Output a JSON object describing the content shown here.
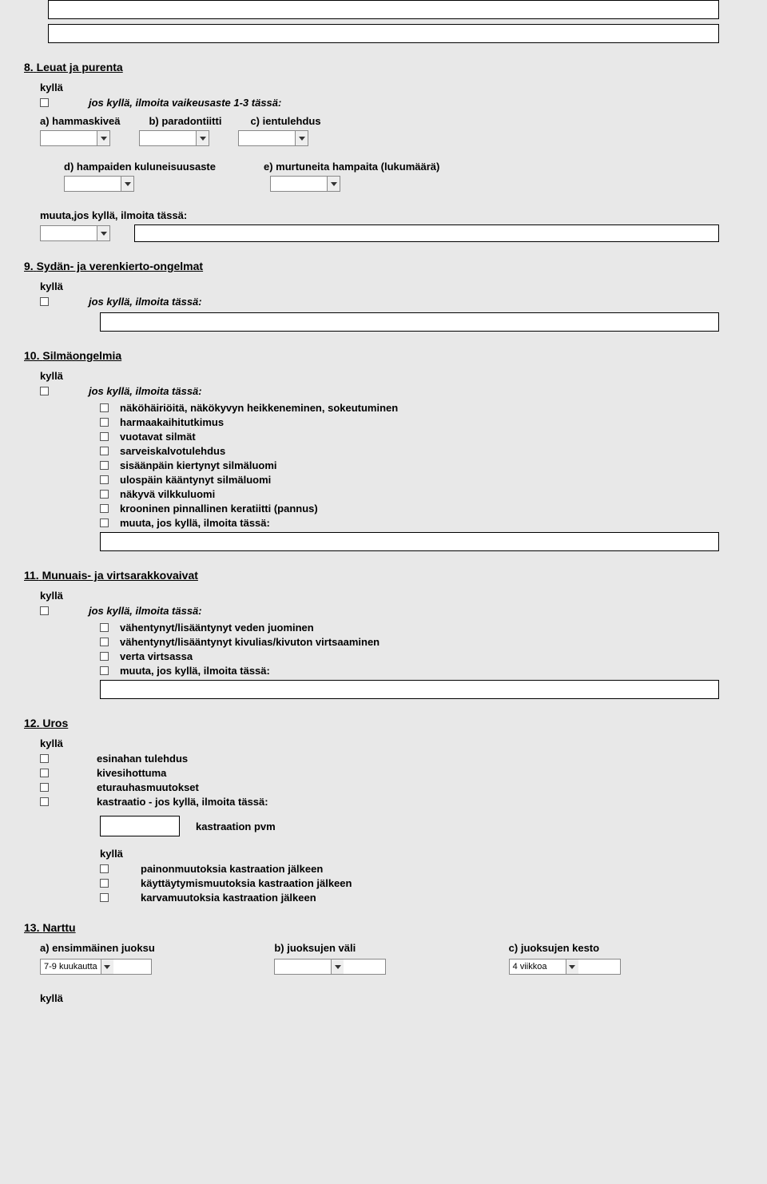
{
  "s8": {
    "num": "8.",
    "title": "Leuat ja purenta",
    "kylla": "kyllä",
    "prompt": "jos kyllä, ilmoita vaikeusaste 1-3 tässä:",
    "a": "a) hammaskiveä",
    "b": "b) paradontiitti",
    "c": "c) ientulehdus",
    "d": "d) hampaiden kuluneisuusaste",
    "e": "e) murtuneita hampaita (lukumäärä)",
    "muut": "muuta,jos kyllä, ilmoita tässä:"
  },
  "s9": {
    "num": "9.",
    "title": "Sydän- ja verenkierto-ongelmat",
    "kylla": "kyllä",
    "prompt": "jos kyllä, ilmoita tässä:"
  },
  "s10": {
    "num": "10.",
    "title": "Silmäongelmia",
    "kylla": "kyllä",
    "prompt": "jos kyllä, ilmoita tässä:",
    "opts": [
      "näköhäiriöitä, näkökyvyn heikkeneminen, sokeutuminen",
      "harmaakaihitutkimus",
      "vuotavat silmät",
      "sarveiskalvotulehdus",
      "sisäänpäin kiertynyt silmäluomi",
      "ulospäin kääntynyt silmäluomi",
      "näkyvä vilkkuluomi",
      "krooninen pinnallinen keratiitti (pannus)",
      "muuta, jos kyllä, ilmoita tässä:"
    ]
  },
  "s11": {
    "num": "11.",
    "title": "Munuais- ja virtsarakkovaivat",
    "kylla": "kyllä",
    "prompt": "jos kyllä, ilmoita tässä:",
    "opts": [
      "vähentynyt/lisääntynyt veden juominen",
      "vähentynyt/lisääntynyt kivulias/kivuton virtsaaminen",
      "verta virtsassa",
      "muuta, jos kyllä, ilmoita tässä:"
    ]
  },
  "s12": {
    "num": "12.",
    "title": "Uros",
    "kylla": "kyllä",
    "opts": [
      "esinahan tulehdus",
      "kivesihottuma",
      "eturauhasmuutokset",
      "kastraatio - jos kyllä, ilmoita tässä:"
    ],
    "kast_pvm": "kastraation pvm",
    "sub_opts": [
      "painonmuutoksia kastraation jälkeen",
      "käyttäytymismuutoksia kastraation jälkeen",
      "karvamuutoksia kastraation jälkeen"
    ]
  },
  "s13": {
    "num": "13.",
    "title": "Narttu",
    "a": "a) ensimmäinen juoksu",
    "b": "b) juoksujen väli",
    "c": "c) juoksujen kesto",
    "a_val": "7-9 kuukautta",
    "b_val": "",
    "c_val": "4 viikkoa",
    "kylla": "kyllä"
  }
}
